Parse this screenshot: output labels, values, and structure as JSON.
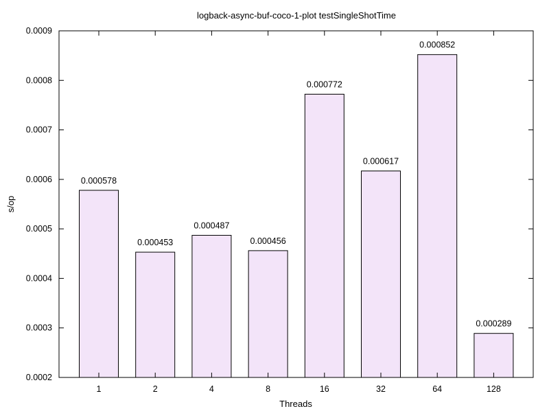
{
  "chart_data": {
    "type": "bar",
    "title": "logback-async-buf-coco-1-plot testSingleShotTime",
    "xlabel": "Threads",
    "ylabel": "s/op",
    "categories": [
      "1",
      "2",
      "4",
      "8",
      "16",
      "32",
      "64",
      "128"
    ],
    "values": [
      0.000578,
      0.000453,
      0.000487,
      0.000456,
      0.000772,
      0.000617,
      0.000852,
      0.000289
    ],
    "value_labels": [
      "0.000578",
      "0.000453",
      "0.000487",
      "0.000456",
      "0.000772",
      "0.000617",
      "0.000852",
      "0.000289"
    ],
    "ylim": [
      0.0002,
      0.0009
    ],
    "yticks": [
      0.0002,
      0.0003,
      0.0004,
      0.0005,
      0.0006,
      0.0007,
      0.0008,
      0.0009
    ],
    "ytick_labels": [
      "0.0002",
      "0.0003",
      "0.0004",
      "0.0005",
      "0.0006",
      "0.0007",
      "0.0008",
      "0.0009"
    ],
    "grid": false,
    "legend": "none",
    "colors": {
      "bar_fill": "#f3e4f9",
      "bar_stroke": "#000000",
      "axis": "#000000",
      "background": "#ffffff"
    }
  }
}
